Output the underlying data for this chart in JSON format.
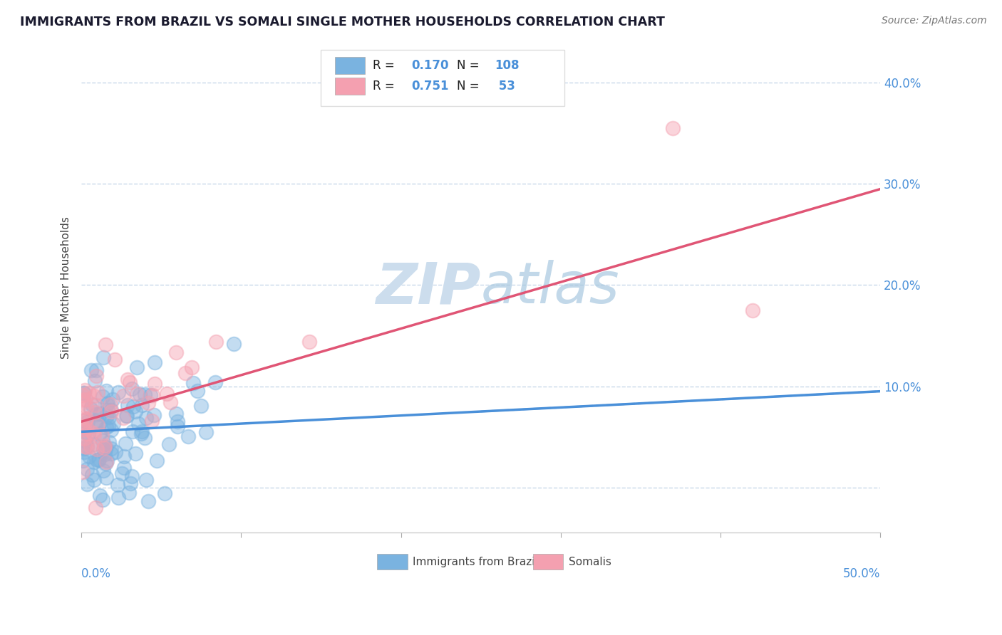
{
  "title": "IMMIGRANTS FROM BRAZIL VS SOMALI SINGLE MOTHER HOUSEHOLDS CORRELATION CHART",
  "source": "Source: ZipAtlas.com",
  "ylabel": "Single Mother Households",
  "brazil_R": "0.170",
  "brazil_N": "108",
  "somali_R": "0.751",
  "somali_N": "53",
  "brazil_color": "#7ab3e0",
  "somali_color": "#f4a0b0",
  "brazil_line_color": "#4a90d9",
  "somali_line_color": "#e05575",
  "axis_label_color": "#4a90d9",
  "watermark_color": "#ccdded",
  "background_color": "#ffffff",
  "grid_color": "#c8d8ea",
  "title_color": "#1a1a2e",
  "xlim": [
    0.0,
    0.5
  ],
  "ylim": [
    -0.045,
    0.44
  ],
  "xticks": [
    0.0,
    0.1,
    0.2,
    0.3,
    0.4,
    0.5
  ],
  "yticks": [
    0.0,
    0.1,
    0.2,
    0.3,
    0.4
  ],
  "brazil_line_start_y": 0.055,
  "brazil_line_end_y": 0.095,
  "somali_line_start_y": 0.065,
  "somali_line_end_y": 0.295
}
